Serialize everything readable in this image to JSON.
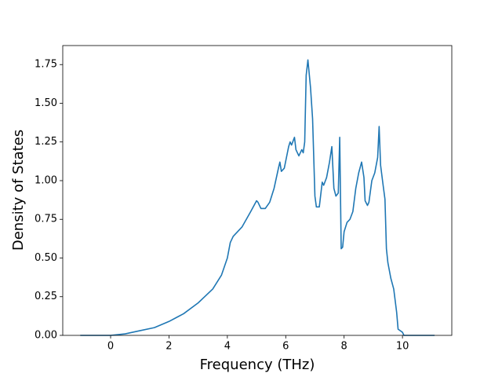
{
  "chart_data": {
    "type": "line",
    "x_label": "Frequency (THz)",
    "y_label": "Density of States",
    "xlim": [
      -1.64,
      11.69
    ],
    "ylim": [
      0,
      1.873
    ],
    "xticks": [
      0,
      2,
      4,
      6,
      8,
      10
    ],
    "yticks": [
      {
        "value": 0,
        "label": "0.00"
      },
      {
        "value": 0.25,
        "label": "0.25"
      },
      {
        "value": 0.5,
        "label": "0.50"
      },
      {
        "value": 0.75,
        "label": "0.75"
      },
      {
        "value": 1,
        "label": "1.00"
      },
      {
        "value": 1.25,
        "label": "1.25"
      },
      {
        "value": 1.5,
        "label": "1.50"
      },
      {
        "value": 1.75,
        "label": "1.75"
      }
    ],
    "x": [
      -1.04,
      0,
      0.5,
      1,
      1.5,
      2,
      2.3,
      2.5,
      3,
      3.5,
      3.8,
      4.0,
      4.1,
      4.2,
      4.5,
      4.8,
      5.0,
      5.05,
      5.15,
      5.3,
      5.45,
      5.6,
      5.75,
      5.8,
      5.85,
      5.95,
      6.1,
      6.15,
      6.2,
      6.3,
      6.35,
      6.45,
      6.55,
      6.6,
      6.65,
      6.7,
      6.76,
      6.85,
      6.92,
      7.0,
      7.05,
      7.15,
      7.25,
      7.3,
      7.4,
      7.5,
      7.58,
      7.65,
      7.72,
      7.8,
      7.85,
      7.9,
      7.95,
      8.0,
      8.1,
      8.2,
      8.3,
      8.4,
      8.5,
      8.6,
      8.68,
      8.72,
      8.8,
      8.85,
      8.95,
      9.05,
      9.15,
      9.2,
      9.25,
      9.33,
      9.4,
      9.45,
      9.5,
      9.6,
      9.7,
      9.8,
      9.85,
      10.0,
      10.05,
      11.1
    ],
    "series": [
      {
        "color": "#1f77b4",
        "values": [
          0,
          0,
          0.01,
          0.03,
          0.05,
          0.09,
          0.12,
          0.14,
          0.21,
          0.3,
          0.39,
          0.5,
          0.6,
          0.64,
          0.7,
          0.8,
          0.87,
          0.86,
          0.82,
          0.82,
          0.86,
          0.95,
          1.08,
          1.12,
          1.06,
          1.08,
          1.22,
          1.25,
          1.23,
          1.28,
          1.2,
          1.16,
          1.2,
          1.18,
          1.25,
          1.68,
          1.78,
          1.6,
          1.4,
          0.9,
          0.83,
          0.83,
          0.99,
          0.97,
          1.02,
          1.12,
          1.22,
          0.95,
          0.9,
          0.92,
          1.28,
          0.56,
          0.57,
          0.67,
          0.73,
          0.75,
          0.8,
          0.95,
          1.05,
          1.12,
          1.02,
          0.87,
          0.84,
          0.86,
          1.0,
          1.05,
          1.15,
          1.35,
          1.1,
          0.98,
          0.88,
          0.56,
          0.47,
          0.37,
          0.3,
          0.15,
          0.04,
          0.02,
          0,
          0
        ]
      }
    ]
  }
}
